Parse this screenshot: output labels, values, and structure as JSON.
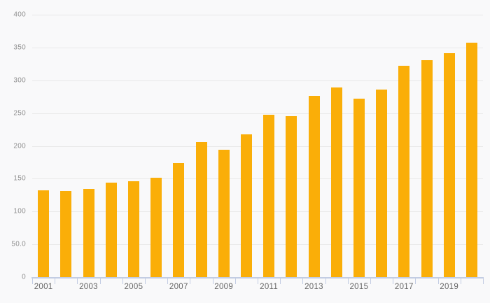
{
  "chart": {
    "background_color": "#f9f9fa",
    "bar_color": "#FAAE08",
    "gridline_color": "#e9e9e9",
    "axis_line_color": "#c3cde3",
    "y_label_color": "#8f8f8f",
    "x_label_color": "#666666"
  },
  "chart_data": {
    "type": "bar",
    "title": "",
    "xlabel": "",
    "ylabel": "",
    "categories": [
      "2001",
      "2002",
      "2003",
      "2004",
      "2005",
      "2006",
      "2007",
      "2008",
      "2009",
      "2010",
      "2011",
      "2012",
      "2013",
      "2014",
      "2015",
      "2016",
      "2017",
      "2018",
      "2019",
      "2020"
    ],
    "values": [
      132,
      131,
      134,
      144,
      146,
      152,
      174,
      206,
      194,
      218,
      247,
      245,
      276,
      289,
      272,
      286,
      322,
      331,
      341,
      357
    ],
    "ylim": [
      0,
      400
    ],
    "y_tick_interval": 50,
    "y_tick_labels": [
      "0",
      "50.0",
      "100",
      "150",
      "200",
      "250",
      "300",
      "350",
      "400"
    ],
    "x_tick_labels_shown": [
      "2001",
      "2003",
      "2005",
      "2007",
      "2009",
      "2011",
      "2013",
      "2015",
      "2017",
      "2019"
    ],
    "grid": true,
    "legend_position": "none"
  }
}
